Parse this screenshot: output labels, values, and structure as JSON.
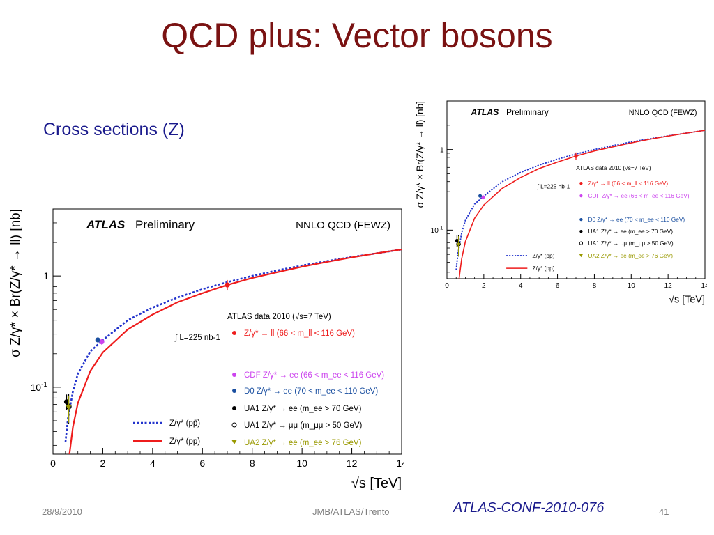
{
  "slide": {
    "title": "QCD plus: Vector bosons",
    "subtitle": "Cross sections (Z)",
    "footer_date": "28/9/2010",
    "footer_center": "JMB/ATLAS/Trento",
    "footer_page": "41",
    "reference": "ATLAS-CONF-2010-076"
  },
  "colors": {
    "title": "#7a1212",
    "theory_ppbar": "#2233cc",
    "theory_pp": "#ee1c1c",
    "atlas": "#ee1c1c",
    "cdf": "#cc44ee",
    "d0": "#1a4fa0",
    "ua1": "#000000",
    "ua2": "#999900"
  },
  "chart_data": [
    {
      "type": "scatter",
      "title": "ATLAS Preliminary",
      "experiment": "ATLAS",
      "status": "Preliminary",
      "theory_label": "NNLO QCD (FEWZ)",
      "xlabel": "√s [TeV]",
      "ylabel": "σ Z/γ* × Br(Z/γ* → ll) [nb]",
      "xlim": [
        0,
        14
      ],
      "ylim": [
        0.025,
        4
      ],
      "log_y": true,
      "x_ticks": [
        0,
        2,
        4,
        6,
        8,
        10,
        12,
        14
      ],
      "y_tick_labels": [
        "1",
        "10-1"
      ],
      "grid": false,
      "legend_placement": "center-right",
      "atlas_data_label": "ATLAS data 2010 (√s=7 TeV)",
      "lumi_label": "∫ L=225 nb-1",
      "series": [
        {
          "name": "Z/γ* → ll (66 < m_ll < 116 GeV)",
          "style": "point",
          "color_key": "atlas",
          "x": [
            7.0
          ],
          "y": [
            0.83
          ],
          "yerr": [
            0.09
          ]
        },
        {
          "name": "CDF Z/γ* → ee (66 < m_ee < 116 GeV)",
          "style": "point",
          "color_key": "cdf",
          "x": [
            1.96
          ],
          "y": [
            0.256
          ],
          "yerr": [
            0.015
          ]
        },
        {
          "name": "D0 Z/γ* → ee (70 < m_ee < 110 GeV)",
          "style": "point",
          "color_key": "d0",
          "x": [
            1.8
          ],
          "y": [
            0.266
          ],
          "yerr": [
            0.012
          ]
        },
        {
          "name": "UA1 Z/γ* → ee (m_ee > 70 GeV)",
          "style": "point",
          "color_key": "ua1",
          "x": [
            0.546
          ],
          "y": [
            0.074
          ],
          "yerr": [
            0.012
          ]
        },
        {
          "name": "UA1 Z/γ* → μμ (m_μμ > 50 GeV)",
          "style": "open-point",
          "color_key": "ua1",
          "x": [
            0.63
          ],
          "y": [
            0.067
          ],
          "yerr": [
            0.02
          ]
        },
        {
          "name": "UA2 Z/γ* → ee (m_ee > 76 GeV)",
          "style": "triangle",
          "color_key": "ua2",
          "x": [
            0.63
          ],
          "y": [
            0.066
          ],
          "yerr": [
            0.018
          ]
        },
        {
          "name": "Z/γ* (pp̄)",
          "style": "dashed-line",
          "color_key": "theory_ppbar",
          "x": [
            0.5,
            0.6,
            0.8,
            1.0,
            1.5,
            2.0,
            3,
            4,
            5,
            6,
            7,
            8,
            9,
            10,
            11,
            12,
            13,
            14
          ],
          "y": [
            0.032,
            0.052,
            0.092,
            0.132,
            0.21,
            0.265,
            0.4,
            0.52,
            0.64,
            0.76,
            0.88,
            1.0,
            1.12,
            1.24,
            1.36,
            1.48,
            1.6,
            1.73
          ]
        },
        {
          "name": "Z/γ* (pp)",
          "style": "solid-line",
          "color_key": "theory_pp",
          "x": [
            0.66,
            0.8,
            1.0,
            1.5,
            2.0,
            3,
            4,
            5,
            6,
            7,
            8,
            9,
            10,
            11,
            12,
            13,
            14
          ],
          "y": [
            0.025,
            0.044,
            0.072,
            0.14,
            0.205,
            0.33,
            0.45,
            0.58,
            0.7,
            0.83,
            0.96,
            1.08,
            1.21,
            1.34,
            1.47,
            1.6,
            1.73
          ]
        }
      ]
    }
  ]
}
